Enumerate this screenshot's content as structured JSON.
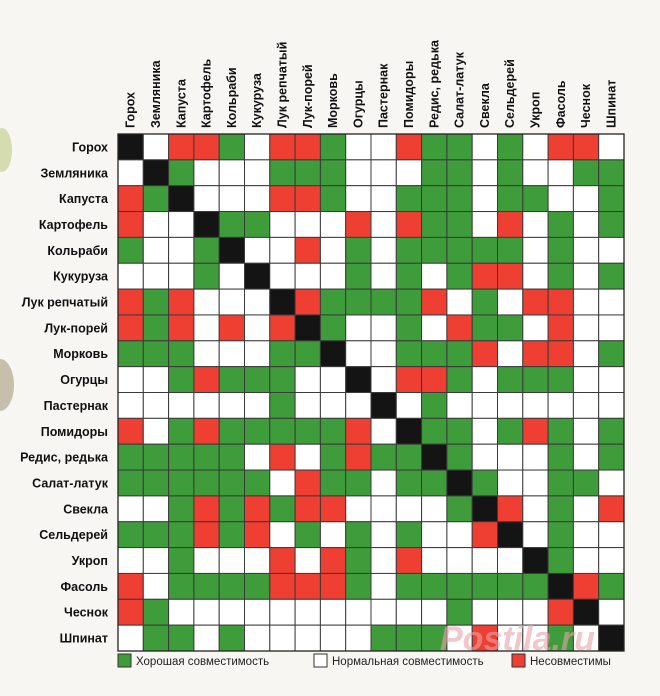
{
  "chart_data": {
    "type": "heatmap",
    "title": "",
    "rows": [
      "Горох",
      "Земляника",
      "Капуста",
      "Картофель",
      "Кольраби",
      "Кукуруза",
      "Лук репчатый",
      "Лук-порей",
      "Морковь",
      "Огурцы",
      "Пастернак",
      "Помидоры",
      "Редис, редька",
      "Салат-латук",
      "Свекла",
      "Сельдерей",
      "Укроп",
      "Фасоль",
      "Чеснок",
      "Шпинат"
    ],
    "columns": [
      "Горох",
      "Земляника",
      "Капуста",
      "Картофель",
      "Кольраби",
      "Кукуруза",
      "Лук репчатый",
      "Лук-порей",
      "Морковь",
      "Огурцы",
      "Пастернак",
      "Помидоры",
      "Редис, редька",
      "Салат-латук",
      "Свекла",
      "Сельдерей",
      "Укроп",
      "Фасоль",
      "Чеснок",
      "Шпинат"
    ],
    "cell_codes": {
      "G": "Хорошая совместимость",
      "N": "Нормальная совместимость",
      "R": "Несовместимы",
      "X": ""
    },
    "cells": [
      [
        "X",
        "N",
        "R",
        "R",
        "G",
        "N",
        "R",
        "R",
        "G",
        "N",
        "N",
        "R",
        "G",
        "G",
        "N",
        "G",
        "N",
        "R",
        "R",
        "N"
      ],
      [
        "N",
        "X",
        "G",
        "N",
        "N",
        "N",
        "G",
        "G",
        "G",
        "N",
        "N",
        "N",
        "G",
        "G",
        "N",
        "G",
        "N",
        "N",
        "G",
        "G"
      ],
      [
        "R",
        "G",
        "X",
        "N",
        "N",
        "N",
        "R",
        "R",
        "G",
        "N",
        "N",
        "G",
        "G",
        "G",
        "N",
        "G",
        "G",
        "N",
        "N",
        "G"
      ],
      [
        "R",
        "N",
        "N",
        "X",
        "G",
        "G",
        "N",
        "N",
        "N",
        "R",
        "N",
        "R",
        "G",
        "G",
        "N",
        "R",
        "N",
        "G",
        "N",
        "G"
      ],
      [
        "G",
        "N",
        "N",
        "G",
        "X",
        "N",
        "N",
        "R",
        "N",
        "G",
        "N",
        "G",
        "G",
        "G",
        "G",
        "G",
        "N",
        "G",
        "N",
        "N"
      ],
      [
        "N",
        "N",
        "N",
        "G",
        "N",
        "X",
        "N",
        "N",
        "N",
        "G",
        "N",
        "G",
        "N",
        "G",
        "R",
        "R",
        "N",
        "G",
        "N",
        "G"
      ],
      [
        "R",
        "G",
        "R",
        "N",
        "N",
        "N",
        "X",
        "R",
        "G",
        "G",
        "G",
        "G",
        "R",
        "N",
        "G",
        "N",
        "R",
        "R",
        "N",
        "N"
      ],
      [
        "R",
        "G",
        "R",
        "N",
        "R",
        "N",
        "R",
        "X",
        "G",
        "N",
        "N",
        "G",
        "N",
        "R",
        "G",
        "G",
        "N",
        "R",
        "N",
        "N"
      ],
      [
        "G",
        "G",
        "G",
        "N",
        "N",
        "N",
        "G",
        "G",
        "X",
        "N",
        "N",
        "G",
        "G",
        "G",
        "R",
        "N",
        "R",
        "R",
        "N",
        "G"
      ],
      [
        "N",
        "N",
        "G",
        "R",
        "G",
        "G",
        "G",
        "N",
        "N",
        "X",
        "N",
        "R",
        "R",
        "G",
        "N",
        "G",
        "G",
        "G",
        "N",
        "N"
      ],
      [
        "N",
        "N",
        "N",
        "N",
        "N",
        "N",
        "G",
        "N",
        "N",
        "N",
        "X",
        "N",
        "G",
        "N",
        "N",
        "N",
        "N",
        "N",
        "N",
        "N"
      ],
      [
        "R",
        "N",
        "G",
        "R",
        "G",
        "G",
        "G",
        "G",
        "G",
        "R",
        "N",
        "X",
        "G",
        "G",
        "N",
        "G",
        "R",
        "G",
        "N",
        "G"
      ],
      [
        "G",
        "G",
        "G",
        "G",
        "G",
        "N",
        "R",
        "N",
        "G",
        "R",
        "G",
        "G",
        "X",
        "G",
        "N",
        "N",
        "N",
        "G",
        "N",
        "G"
      ],
      [
        "G",
        "G",
        "G",
        "G",
        "G",
        "G",
        "N",
        "R",
        "G",
        "G",
        "N",
        "G",
        "G",
        "X",
        "G",
        "N",
        "N",
        "G",
        "G",
        "N"
      ],
      [
        "N",
        "N",
        "G",
        "R",
        "G",
        "R",
        "G",
        "R",
        "R",
        "N",
        "N",
        "N",
        "N",
        "G",
        "X",
        "R",
        "N",
        "G",
        "N",
        "R"
      ],
      [
        "G",
        "G",
        "G",
        "R",
        "G",
        "R",
        "N",
        "G",
        "N",
        "G",
        "N",
        "G",
        "N",
        "N",
        "R",
        "X",
        "N",
        "G",
        "N",
        "N"
      ],
      [
        "N",
        "N",
        "G",
        "N",
        "N",
        "N",
        "R",
        "N",
        "R",
        "G",
        "N",
        "R",
        "N",
        "N",
        "N",
        "N",
        "X",
        "G",
        "N",
        "N"
      ],
      [
        "R",
        "N",
        "G",
        "G",
        "G",
        "G",
        "R",
        "R",
        "R",
        "G",
        "N",
        "G",
        "G",
        "G",
        "G",
        "G",
        "G",
        "X",
        "R",
        "G"
      ],
      [
        "R",
        "G",
        "N",
        "N",
        "N",
        "N",
        "N",
        "N",
        "N",
        "N",
        "N",
        "N",
        "N",
        "G",
        "N",
        "N",
        "N",
        "R",
        "X",
        "N"
      ],
      [
        "N",
        "G",
        "G",
        "N",
        "G",
        "N",
        "N",
        "N",
        "N",
        "N",
        "G",
        "G",
        "G",
        "N",
        "R",
        "N",
        "N",
        "G",
        "N",
        "X"
      ]
    ],
    "colors": {
      "G": "#3f9c3a",
      "N": "#ffffff",
      "R": "#ef3f33",
      "X": "#141414",
      "grid": "#3a3a3a"
    },
    "legend": [
      {
        "code": "G",
        "label": "Хорошая совместимость"
      },
      {
        "code": "N",
        "label": "Нормальная совместимость"
      },
      {
        "code": "R",
        "label": "Несовместимы"
      }
    ]
  },
  "watermark": "Postila.ru"
}
